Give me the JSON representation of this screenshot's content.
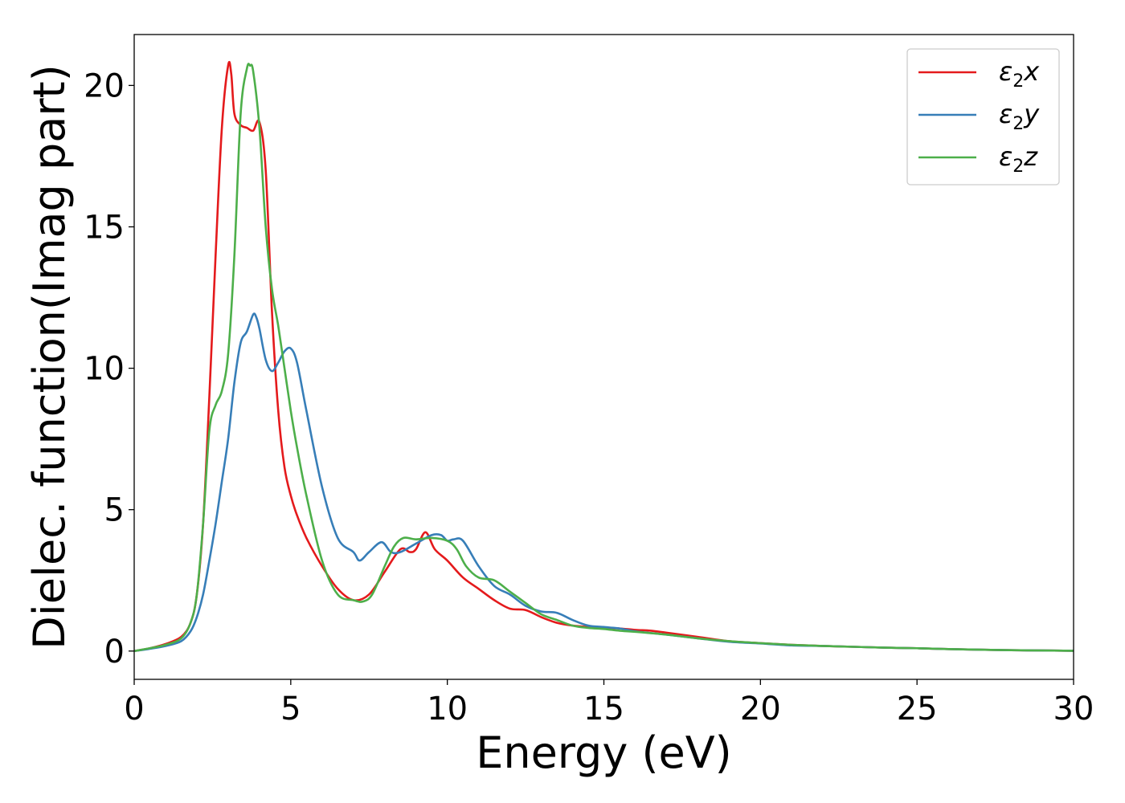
{
  "chart_data": {
    "type": "line",
    "xlabel": "Energy (eV)",
    "ylabel": "Dielec. function(Imag part)",
    "xlim": [
      0,
      30
    ],
    "ylim": [
      -1,
      21.8
    ],
    "xticks": [
      0,
      5,
      10,
      15,
      20,
      25,
      30
    ],
    "yticks": [
      0,
      5,
      10,
      15,
      20
    ],
    "grid": false,
    "legend_position": "top-right",
    "series": [
      {
        "name": "ε2x",
        "legend_symbol": "ε",
        "legend_sub": "2",
        "legend_var": "x",
        "color": "#e41a1c",
        "x": [
          0,
          0.5,
          1.0,
          1.5,
          1.8,
          2.0,
          2.2,
          2.4,
          2.6,
          2.8,
          3.0,
          3.1,
          3.2,
          3.4,
          3.6,
          3.8,
          4.0,
          4.2,
          4.4,
          4.6,
          4.8,
          5.0,
          5.2,
          5.5,
          6.0,
          6.5,
          7.0,
          7.5,
          8.0,
          8.5,
          8.8,
          9.0,
          9.3,
          9.6,
          10.0,
          10.5,
          11.0,
          11.5,
          12.0,
          12.5,
          13.0,
          13.5,
          14.0,
          14.5,
          15.0,
          15.5,
          16.0,
          16.5,
          17.0,
          18.0,
          19.0,
          20.0,
          21.0,
          22.0,
          23.0,
          24.0,
          25.0,
          26.0,
          27.0,
          28.0,
          29.0,
          30.0
        ],
        "values": [
          0.0,
          0.1,
          0.25,
          0.5,
          1.0,
          2.0,
          4.5,
          9.0,
          14.0,
          18.5,
          20.7,
          20.4,
          19.0,
          18.6,
          18.5,
          18.4,
          18.7,
          17.0,
          12.0,
          8.5,
          6.5,
          5.5,
          4.8,
          4.0,
          3.0,
          2.2,
          1.8,
          2.0,
          2.8,
          3.6,
          3.5,
          3.6,
          4.2,
          3.6,
          3.2,
          2.6,
          2.2,
          1.8,
          1.5,
          1.45,
          1.2,
          1.0,
          0.9,
          0.85,
          0.82,
          0.8,
          0.75,
          0.72,
          0.65,
          0.5,
          0.35,
          0.28,
          0.22,
          0.18,
          0.15,
          0.12,
          0.1,
          0.07,
          0.05,
          0.03,
          0.02,
          0.01
        ]
      },
      {
        "name": "ε2y",
        "legend_symbol": "ε",
        "legend_sub": "2",
        "legend_var": "y",
        "color": "#377eb8",
        "x": [
          0,
          0.5,
          1.0,
          1.5,
          1.8,
          2.0,
          2.2,
          2.4,
          2.6,
          2.8,
          3.0,
          3.2,
          3.4,
          3.6,
          3.8,
          3.9,
          4.0,
          4.2,
          4.4,
          4.6,
          4.8,
          5.0,
          5.2,
          5.5,
          6.0,
          6.5,
          7.0,
          7.2,
          7.5,
          7.9,
          8.2,
          8.5,
          9.0,
          9.5,
          9.8,
          10.0,
          10.2,
          10.5,
          11.0,
          11.5,
          12.0,
          12.5,
          13.0,
          13.5,
          14.0,
          14.5,
          15.0,
          15.5,
          16.0,
          17.0,
          18.0,
          19.0,
          20.0,
          21.0,
          22.0,
          23.0,
          24.0,
          25.0,
          26.0,
          27.0,
          28.0,
          29.0,
          30.0
        ],
        "values": [
          0.0,
          0.08,
          0.18,
          0.35,
          0.7,
          1.2,
          2.0,
          3.2,
          4.5,
          6.0,
          7.5,
          9.5,
          10.9,
          11.3,
          11.9,
          11.8,
          11.4,
          10.3,
          9.9,
          10.2,
          10.6,
          10.7,
          10.2,
          8.5,
          5.8,
          4.0,
          3.5,
          3.2,
          3.5,
          3.85,
          3.5,
          3.5,
          3.8,
          4.1,
          4.1,
          3.9,
          3.95,
          3.9,
          3.0,
          2.3,
          2.0,
          1.6,
          1.4,
          1.35,
          1.1,
          0.9,
          0.85,
          0.8,
          0.7,
          0.58,
          0.45,
          0.33,
          0.27,
          0.2,
          0.18,
          0.15,
          0.12,
          0.1,
          0.07,
          0.05,
          0.03,
          0.02,
          0.01
        ]
      },
      {
        "name": "ε2z",
        "legend_symbol": "ε",
        "legend_sub": "2",
        "legend_var": "z",
        "color": "#4daf4a",
        "x": [
          0,
          0.5,
          1.0,
          1.5,
          1.8,
          2.0,
          2.2,
          2.4,
          2.6,
          2.8,
          3.0,
          3.2,
          3.4,
          3.6,
          3.7,
          3.8,
          4.0,
          4.2,
          4.4,
          4.6,
          4.8,
          5.0,
          5.2,
          5.5,
          6.0,
          6.5,
          7.0,
          7.3,
          7.6,
          8.0,
          8.3,
          8.6,
          9.0,
          9.5,
          10.0,
          10.3,
          10.6,
          11.0,
          11.5,
          12.0,
          12.5,
          13.0,
          13.5,
          14.0,
          14.5,
          15.0,
          15.5,
          16.0,
          17.0,
          18.0,
          19.0,
          20.0,
          21.0,
          22.0,
          23.0,
          24.0,
          25.0,
          26.0,
          27.0,
          28.0,
          29.0,
          30.0
        ],
        "values": [
          0.0,
          0.1,
          0.22,
          0.45,
          1.0,
          2.0,
          4.5,
          7.8,
          8.7,
          9.2,
          10.5,
          14.0,
          19.0,
          20.6,
          20.7,
          20.5,
          18.5,
          15.0,
          12.8,
          11.5,
          10.0,
          8.5,
          7.2,
          5.5,
          3.2,
          2.0,
          1.8,
          1.75,
          2.0,
          3.0,
          3.7,
          4.0,
          3.95,
          4.0,
          3.9,
          3.6,
          3.0,
          2.6,
          2.5,
          2.1,
          1.7,
          1.3,
          1.1,
          0.9,
          0.82,
          0.78,
          0.72,
          0.68,
          0.58,
          0.45,
          0.35,
          0.28,
          0.22,
          0.18,
          0.15,
          0.12,
          0.1,
          0.07,
          0.05,
          0.03,
          0.02,
          0.01
        ]
      }
    ]
  }
}
